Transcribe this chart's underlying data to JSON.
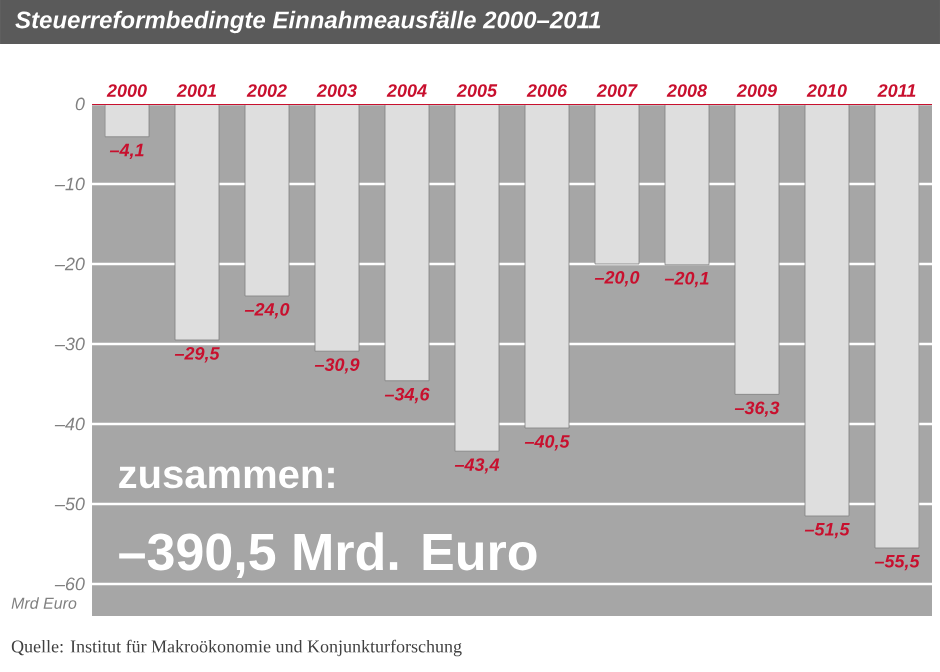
{
  "chart_data": {
    "type": "bar",
    "title": "Steuerreformbedingte Einnahmeausfälle 2000–2011",
    "ylabel": "Mrd Euro",
    "categories": [
      "2000",
      "2001",
      "2002",
      "2003",
      "2004",
      "2005",
      "2006",
      "2007",
      "2008",
      "2009",
      "2010",
      "2011"
    ],
    "values": [
      -4.1,
      -29.5,
      -24.0,
      -30.9,
      -34.6,
      -43.4,
      -40.5,
      -20.0,
      -20.1,
      -36.3,
      -51.5,
      -55.5
    ],
    "value_labels": [
      "–4,1",
      "–29,5",
      "–24,0",
      "–30,9",
      "–34,6",
      "–43,4",
      "–40,5",
      "–20,0",
      "–20,1",
      "–36,3",
      "–51,5",
      "–55,5"
    ],
    "color": "#dedede",
    "ylim": [
      -64,
      0
    ],
    "yticks": [
      0,
      {
        "value": -10,
        "label": "–10"
      },
      {
        "value": -20,
        "label": "–20"
      },
      {
        "value": -30,
        "label": "–30"
      },
      {
        "value": -40,
        "label": "–40"
      },
      {
        "value": -50,
        "label": "–50"
      },
      {
        "value": -60,
        "label": "–60"
      }
    ],
    "grid": "y",
    "annotations": [
      "zusammen:",
      "–390,5 Mrd. Euro",
      "Quelle: Institut für Makroökonomie und Konjunkturforschung"
    ]
  }
}
